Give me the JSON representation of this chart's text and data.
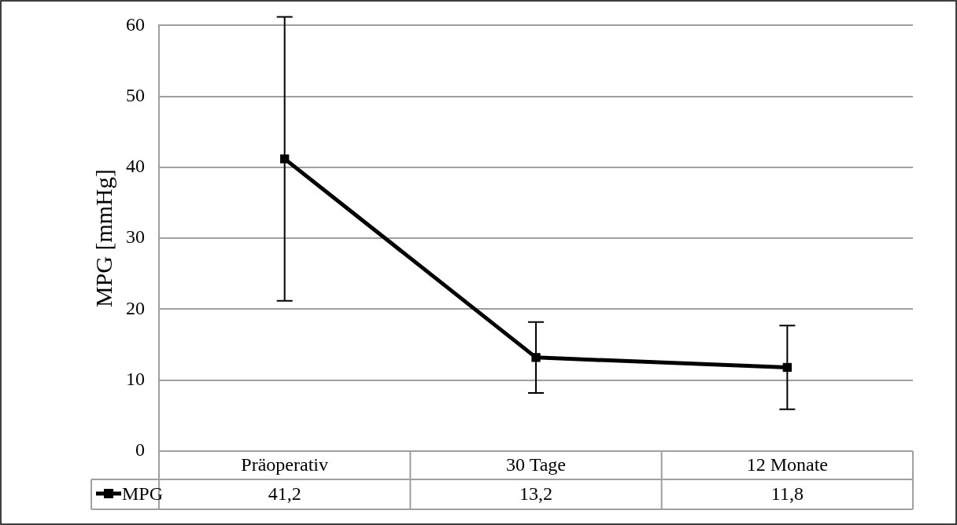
{
  "chart_data": {
    "type": "line",
    "ylabel": "MPG [mmHg]",
    "categories": [
      "Präoperativ",
      "30 Tage",
      "12 Monate"
    ],
    "series": [
      {
        "name": "MPG",
        "color": "#000000",
        "values": [
          41.2,
          13.2,
          11.8
        ],
        "errors": [
          20,
          5,
          5.9
        ],
        "value_labels": [
          "41,2",
          "13,2",
          "11,8"
        ]
      }
    ],
    "ylim": [
      0,
      60
    ],
    "yticks": [
      0,
      10,
      20,
      30,
      40,
      50,
      60
    ],
    "grid": "y",
    "legend": "bottom",
    "marker": "square",
    "line_style": "solid"
  }
}
